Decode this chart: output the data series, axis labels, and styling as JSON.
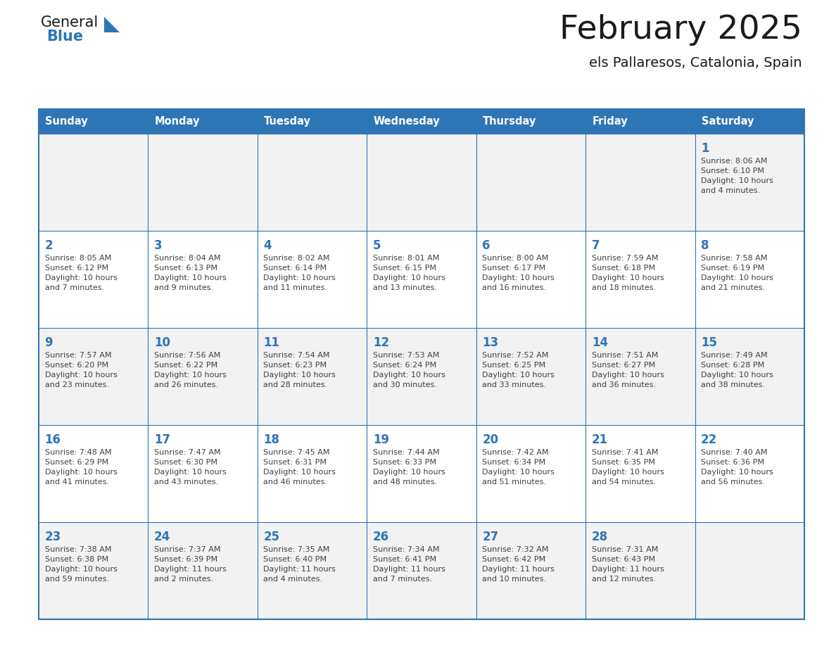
{
  "title": "February 2025",
  "subtitle": "els Pallaresos, Catalonia, Spain",
  "days_of_week": [
    "Sunday",
    "Monday",
    "Tuesday",
    "Wednesday",
    "Thursday",
    "Friday",
    "Saturday"
  ],
  "header_bg": "#2E75B6",
  "header_text": "#FFFFFF",
  "cell_bg_light": "#f2f2f2",
  "cell_bg_white": "#FFFFFF",
  "border_color": "#2E75B6",
  "day_num_color": "#2E75B6",
  "cell_text_color": "#404040",
  "title_color": "#1a1a1a",
  "subtitle_color": "#1a1a1a",
  "weeks": [
    [
      {
        "day": null,
        "info": ""
      },
      {
        "day": null,
        "info": ""
      },
      {
        "day": null,
        "info": ""
      },
      {
        "day": null,
        "info": ""
      },
      {
        "day": null,
        "info": ""
      },
      {
        "day": null,
        "info": ""
      },
      {
        "day": 1,
        "info": "Sunrise: 8:06 AM\nSunset: 6:10 PM\nDaylight: 10 hours\nand 4 minutes."
      }
    ],
    [
      {
        "day": 2,
        "info": "Sunrise: 8:05 AM\nSunset: 6:12 PM\nDaylight: 10 hours\nand 7 minutes."
      },
      {
        "day": 3,
        "info": "Sunrise: 8:04 AM\nSunset: 6:13 PM\nDaylight: 10 hours\nand 9 minutes."
      },
      {
        "day": 4,
        "info": "Sunrise: 8:02 AM\nSunset: 6:14 PM\nDaylight: 10 hours\nand 11 minutes."
      },
      {
        "day": 5,
        "info": "Sunrise: 8:01 AM\nSunset: 6:15 PM\nDaylight: 10 hours\nand 13 minutes."
      },
      {
        "day": 6,
        "info": "Sunrise: 8:00 AM\nSunset: 6:17 PM\nDaylight: 10 hours\nand 16 minutes."
      },
      {
        "day": 7,
        "info": "Sunrise: 7:59 AM\nSunset: 6:18 PM\nDaylight: 10 hours\nand 18 minutes."
      },
      {
        "day": 8,
        "info": "Sunrise: 7:58 AM\nSunset: 6:19 PM\nDaylight: 10 hours\nand 21 minutes."
      }
    ],
    [
      {
        "day": 9,
        "info": "Sunrise: 7:57 AM\nSunset: 6:20 PM\nDaylight: 10 hours\nand 23 minutes."
      },
      {
        "day": 10,
        "info": "Sunrise: 7:56 AM\nSunset: 6:22 PM\nDaylight: 10 hours\nand 26 minutes."
      },
      {
        "day": 11,
        "info": "Sunrise: 7:54 AM\nSunset: 6:23 PM\nDaylight: 10 hours\nand 28 minutes."
      },
      {
        "day": 12,
        "info": "Sunrise: 7:53 AM\nSunset: 6:24 PM\nDaylight: 10 hours\nand 30 minutes."
      },
      {
        "day": 13,
        "info": "Sunrise: 7:52 AM\nSunset: 6:25 PM\nDaylight: 10 hours\nand 33 minutes."
      },
      {
        "day": 14,
        "info": "Sunrise: 7:51 AM\nSunset: 6:27 PM\nDaylight: 10 hours\nand 36 minutes."
      },
      {
        "day": 15,
        "info": "Sunrise: 7:49 AM\nSunset: 6:28 PM\nDaylight: 10 hours\nand 38 minutes."
      }
    ],
    [
      {
        "day": 16,
        "info": "Sunrise: 7:48 AM\nSunset: 6:29 PM\nDaylight: 10 hours\nand 41 minutes."
      },
      {
        "day": 17,
        "info": "Sunrise: 7:47 AM\nSunset: 6:30 PM\nDaylight: 10 hours\nand 43 minutes."
      },
      {
        "day": 18,
        "info": "Sunrise: 7:45 AM\nSunset: 6:31 PM\nDaylight: 10 hours\nand 46 minutes."
      },
      {
        "day": 19,
        "info": "Sunrise: 7:44 AM\nSunset: 6:33 PM\nDaylight: 10 hours\nand 48 minutes."
      },
      {
        "day": 20,
        "info": "Sunrise: 7:42 AM\nSunset: 6:34 PM\nDaylight: 10 hours\nand 51 minutes."
      },
      {
        "day": 21,
        "info": "Sunrise: 7:41 AM\nSunset: 6:35 PM\nDaylight: 10 hours\nand 54 minutes."
      },
      {
        "day": 22,
        "info": "Sunrise: 7:40 AM\nSunset: 6:36 PM\nDaylight: 10 hours\nand 56 minutes."
      }
    ],
    [
      {
        "day": 23,
        "info": "Sunrise: 7:38 AM\nSunset: 6:38 PM\nDaylight: 10 hours\nand 59 minutes."
      },
      {
        "day": 24,
        "info": "Sunrise: 7:37 AM\nSunset: 6:39 PM\nDaylight: 11 hours\nand 2 minutes."
      },
      {
        "day": 25,
        "info": "Sunrise: 7:35 AM\nSunset: 6:40 PM\nDaylight: 11 hours\nand 4 minutes."
      },
      {
        "day": 26,
        "info": "Sunrise: 7:34 AM\nSunset: 6:41 PM\nDaylight: 11 hours\nand 7 minutes."
      },
      {
        "day": 27,
        "info": "Sunrise: 7:32 AM\nSunset: 6:42 PM\nDaylight: 11 hours\nand 10 minutes."
      },
      {
        "day": 28,
        "info": "Sunrise: 7:31 AM\nSunset: 6:43 PM\nDaylight: 11 hours\nand 12 minutes."
      },
      {
        "day": null,
        "info": ""
      }
    ]
  ]
}
